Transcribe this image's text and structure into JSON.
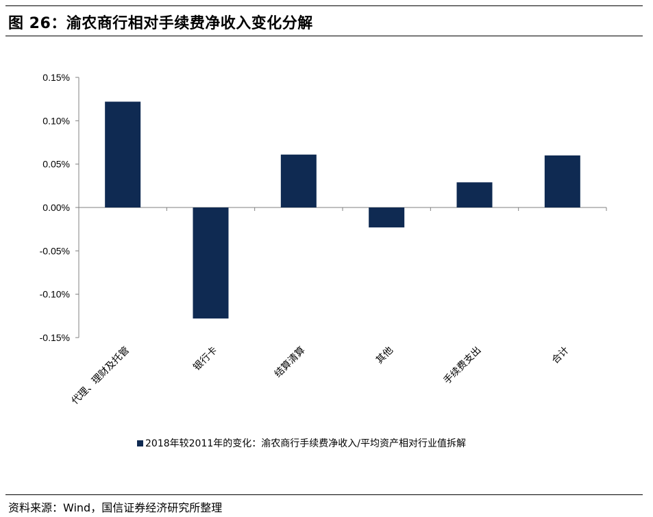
{
  "header": {
    "title": "图 26：渝农商行相对手续费净收入变化分解"
  },
  "chart_data": {
    "type": "bar",
    "categories": [
      "代理、理财及托管",
      "银行卡",
      "结算清算",
      "其他",
      "手续费支出",
      "合计"
    ],
    "series": [
      {
        "name": "2018年较2011年的变化：渝农商行手续费净收入/平均资产相对行业值拆解",
        "values": [
          0.122,
          -0.128,
          0.061,
          -0.023,
          0.029,
          0.06
        ]
      }
    ],
    "ylim": [
      -0.15,
      0.15
    ],
    "yticks": [
      0.15,
      0.1,
      0.05,
      0.0,
      -0.05,
      -0.1,
      -0.15
    ],
    "ytick_labels": [
      "0.15%",
      "0.10%",
      "0.05%",
      "0.00%",
      "-0.05%",
      "-0.10%",
      "-0.15%"
    ],
    "xlabel": "",
    "ylabel": "",
    "grid": false,
    "legend_position": "bottom",
    "bar_color": "#0f2a52"
  },
  "footer": {
    "source": "资料来源：Wind，国信证券经济研究所整理"
  }
}
